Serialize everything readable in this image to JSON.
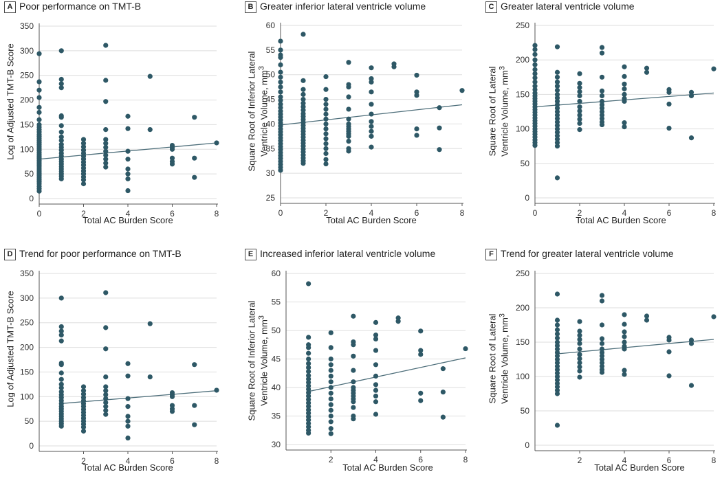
{
  "chart_data": [
    {
      "letter": "A",
      "title": "Poor performance on TMT-B",
      "type": "scatter",
      "xlabel": "Total AC Burden Score",
      "ylabel": "Log of Adjusted TMT-B Score",
      "ylabel_line1": "Log of Adjusted TMT-B Score",
      "ylabel_line2": "",
      "ylabel_sup": "",
      "xlim": [
        0,
        8
      ],
      "xticks": [
        "0",
        "2",
        "4",
        "6",
        "8"
      ],
      "ylim": [
        0,
        350
      ],
      "yticks": [
        "0",
        "50",
        "100",
        "150",
        "200",
        "250",
        "300",
        "350"
      ],
      "regression": {
        "x": [
          0,
          8
        ],
        "y": [
          80,
          113
        ]
      },
      "points": {
        "0": [
          294,
          237,
          220,
          205,
          185,
          175,
          160,
          150,
          145,
          140,
          135,
          130,
          126,
          122,
          118,
          114,
          110,
          106,
          102,
          98,
          94,
          90,
          86,
          82,
          78,
          74,
          70,
          66,
          62,
          58,
          54,
          50,
          46,
          42,
          38,
          34,
          30,
          25,
          20,
          15
        ],
        "1": [
          300,
          242,
          233,
          225,
          168,
          165,
          148,
          135,
          125,
          118,
          110,
          104,
          98,
          92,
          86,
          80,
          75,
          70,
          65,
          60,
          55,
          50,
          45,
          40
        ],
        "2": [
          120,
          112,
          105,
          98,
          92,
          86,
          80,
          74,
          68,
          62,
          56,
          50,
          44,
          38,
          30
        ],
        "3": [
          311,
          240,
          197,
          140,
          120,
          112,
          104,
          96,
          88,
          80,
          72,
          64
        ],
        "4": [
          167,
          142,
          96,
          80,
          60,
          50,
          40,
          16
        ],
        "5": [
          248,
          140
        ],
        "6": [
          108,
          104,
          100,
          82,
          75,
          70
        ],
        "7": [
          165,
          82,
          43
        ],
        "8": [
          113
        ]
      }
    },
    {
      "letter": "B",
      "title": "Greater inferior lateral ventricle volume",
      "type": "scatter",
      "xlabel": "Total AC Burden Score",
      "ylabel": "Square Root of Inferior Lateral Ventricle Volume, mm3",
      "ylabel_line1": "Square Root of Inferior Lateral",
      "ylabel_line2": "Ventricle Volume, mm",
      "ylabel_sup": "3",
      "xlim": [
        0,
        8
      ],
      "xticks": [
        "0",
        "2",
        "4",
        "6",
        "8"
      ],
      "ylim": [
        25,
        60
      ],
      "yticks": [
        "25",
        "30",
        "35",
        "40",
        "45",
        "50",
        "55",
        "60"
      ],
      "regression": {
        "x": [
          0,
          8
        ],
        "y": [
          39.8,
          43.9
        ]
      },
      "points": {
        "0": [
          56.8,
          55.0,
          54.0,
          53.5,
          52.0,
          50.5,
          49.5,
          48.5,
          47.5,
          46.5,
          45.5,
          44.8,
          44.0,
          43.3,
          42.6,
          42.0,
          41.4,
          40.8,
          40.2,
          39.6,
          39.0,
          38.4,
          37.8,
          37.2,
          36.6,
          36.0,
          35.4,
          34.8,
          34.2,
          33.6,
          33.0,
          32.4,
          31.8,
          31.2,
          30.6
        ],
        "1": [
          58.2,
          48.8,
          47.0,
          46.0,
          45.0,
          44.2,
          43.5,
          42.8,
          42.1,
          41.5,
          40.9,
          40.3,
          39.7,
          39.1,
          38.5,
          37.9,
          37.3,
          36.7,
          36.1,
          35.5,
          34.9,
          34.3,
          33.7,
          33.1,
          32.5,
          32.0
        ],
        "2": [
          49.6,
          47.0,
          45.0,
          44.0,
          43.0,
          42.0,
          41.0,
          40.0,
          39.0,
          38.0,
          37.0,
          36.0,
          35.0,
          34.0,
          32.8,
          31.9
        ],
        "3": [
          52.5,
          48.0,
          47.5,
          45.5,
          43.0,
          41.0,
          40.0,
          39.5,
          39.0,
          38.5,
          38.0,
          37.5,
          36.5,
          35.0,
          34.5
        ],
        "4": [
          51.4,
          49.2,
          48.5,
          46.5,
          44.0,
          42.0,
          40.5,
          39.5,
          38.5,
          37.5,
          35.3
        ],
        "5": [
          52.2,
          51.6
        ],
        "6": [
          49.9,
          46.5,
          45.8,
          39.0,
          37.7
        ],
        "7": [
          43.3,
          39.2,
          34.8
        ],
        "8": [
          46.8
        ]
      }
    },
    {
      "letter": "C",
      "title": "Greater lateral ventricle volume",
      "type": "scatter",
      "xlabel": "Total AC Burden Score",
      "ylabel": "Square Root of Lateral Ventricle Volume, mm3",
      "ylabel_line1": "Square Root of Lateral",
      "ylabel_line2": "Ventricle Volume, mm",
      "ylabel_sup": "3",
      "xlim": [
        0,
        8
      ],
      "xticks": [
        "0",
        "2",
        "4",
        "6",
        "8"
      ],
      "ylim": [
        0,
        250
      ],
      "yticks": [
        "0",
        "50",
        "100",
        "150",
        "200",
        "250"
      ],
      "regression": {
        "x": [
          0,
          8
        ],
        "y": [
          132,
          152
        ]
      },
      "points": {
        "0": [
          221,
          215,
          208,
          200,
          193,
          186,
          180,
          174,
          168,
          162,
          157,
          152,
          148,
          144,
          140,
          136,
          132,
          128,
          124,
          120,
          116,
          112,
          108,
          104,
          100,
          96,
          92,
          88,
          84,
          80,
          76
        ],
        "1": [
          219,
          182,
          175,
          168,
          162,
          156,
          150,
          145,
          140,
          135,
          130,
          125,
          120,
          115,
          110,
          105,
          100,
          95,
          90,
          85,
          80,
          75,
          29
        ],
        "2": [
          180,
          166,
          160,
          154,
          148,
          140,
          132,
          126,
          120,
          114,
          108,
          99
        ],
        "3": [
          218,
          210,
          175,
          155,
          148,
          140,
          135,
          130,
          125,
          120,
          115,
          110,
          106
        ],
        "4": [
          190,
          176,
          165,
          158,
          150,
          144,
          140,
          109,
          103
        ],
        "5": [
          188,
          182
        ],
        "6": [
          157,
          153,
          136,
          101
        ],
        "7": [
          153,
          148,
          87
        ],
        "8": [
          187
        ]
      }
    },
    {
      "letter": "D",
      "title": "Trend for poor performance on TMT-B",
      "type": "scatter",
      "xlabel": "Total AC Burden Score",
      "ylabel": "Log of Adjusted TMT-B Score",
      "ylabel_line1": "Log of Adjusted TMT-B Score",
      "ylabel_line2": "",
      "ylabel_sup": "",
      "xlim": [
        0,
        8
      ],
      "xticks": [
        "2",
        "4",
        "6",
        "8"
      ],
      "ylim": [
        0,
        350
      ],
      "yticks": [
        "0",
        "50",
        "100",
        "150",
        "200",
        "250",
        "300",
        "350"
      ],
      "regression": {
        "x": [
          1,
          8
        ],
        "y": [
          86,
          112
        ]
      },
      "points": {
        "1": [
          300,
          242,
          233,
          225,
          213,
          168,
          165,
          148,
          135,
          125,
          118,
          110,
          104,
          98,
          92,
          86,
          80,
          75,
          70,
          65,
          60,
          55,
          50,
          45,
          40
        ],
        "2": [
          120,
          112,
          105,
          98,
          92,
          86,
          80,
          74,
          68,
          62,
          56,
          50,
          44,
          38,
          30
        ],
        "3": [
          311,
          240,
          197,
          140,
          120,
          112,
          104,
          96,
          88,
          80,
          72,
          64
        ],
        "4": [
          167,
          142,
          96,
          80,
          60,
          50,
          40,
          16
        ],
        "5": [
          248,
          140
        ],
        "6": [
          108,
          104,
          100,
          82,
          75,
          70
        ],
        "7": [
          165,
          82,
          43
        ],
        "8": [
          113
        ]
      }
    },
    {
      "letter": "E",
      "title": "Increased inferior lateral ventricle volume",
      "type": "scatter",
      "xlabel": "Total AC Burden Score",
      "ylabel": "Square Root of Inferior Lateral Ventricle Volume, mm3",
      "ylabel_line1": "Square Root of Inferior Lateral",
      "ylabel_line2": "Ventricle Volume, mm",
      "ylabel_sup": "3",
      "xlim": [
        0,
        8
      ],
      "xticks": [
        "2",
        "4",
        "6",
        "8"
      ],
      "ylim": [
        30,
        60
      ],
      "yticks": [
        "30",
        "35",
        "40",
        "45",
        "50",
        "55",
        "60"
      ],
      "regression": {
        "x": [
          1,
          8
        ],
        "y": [
          39.3,
          45.2
        ]
      },
      "points": {
        "1": [
          58.2,
          48.8,
          47.5,
          47.0,
          46.0,
          45.0,
          44.2,
          43.5,
          42.8,
          42.1,
          41.5,
          40.9,
          40.3,
          39.7,
          39.1,
          38.5,
          37.9,
          37.3,
          36.7,
          36.1,
          35.5,
          34.9,
          34.3,
          33.7,
          33.1,
          32.5,
          32.0
        ],
        "2": [
          49.6,
          47.0,
          45.0,
          44.0,
          43.0,
          42.0,
          41.0,
          40.0,
          39.0,
          38.0,
          37.0,
          36.0,
          35.0,
          34.0,
          32.8,
          31.9
        ],
        "3": [
          52.5,
          48.0,
          47.5,
          45.5,
          43.0,
          41.0,
          40.0,
          39.5,
          39.0,
          38.5,
          38.0,
          37.5,
          36.5,
          35.0,
          34.5
        ],
        "4": [
          51.4,
          49.2,
          48.5,
          46.5,
          44.0,
          42.0,
          40.5,
          39.5,
          38.5,
          37.5,
          35.3
        ],
        "5": [
          52.2,
          51.6
        ],
        "6": [
          49.9,
          46.5,
          45.8,
          39.0,
          37.7
        ],
        "7": [
          43.3,
          39.2,
          34.8
        ],
        "8": [
          46.8
        ]
      }
    },
    {
      "letter": "F",
      "title": "Trend for greater lateral ventricle volume",
      "type": "scatter",
      "xlabel": "Total AC Burden Score",
      "ylabel": "Square Root of Lateral Ventricle Volume, mm3",
      "ylabel_line1": "Square Root of Lateral",
      "ylabel_line2": "Ventricle Volume, mm",
      "ylabel_sup": "3",
      "xlim": [
        0,
        8
      ],
      "xticks": [
        "2",
        "4",
        "6",
        "8"
      ],
      "ylim": [
        0,
        250
      ],
      "yticks": [
        "0",
        "50",
        "100",
        "150",
        "200",
        "250"
      ],
      "regression": {
        "x": [
          1,
          8
        ],
        "y": [
          133,
          154
        ]
      },
      "points": {
        "1": [
          220,
          182,
          175,
          168,
          162,
          156,
          150,
          145,
          140,
          135,
          130,
          125,
          120,
          115,
          110,
          105,
          100,
          95,
          90,
          85,
          80,
          75,
          29
        ],
        "2": [
          180,
          166,
          160,
          154,
          148,
          140,
          132,
          126,
          120,
          114,
          108,
          99
        ],
        "3": [
          218,
          210,
          175,
          155,
          148,
          140,
          135,
          130,
          125,
          120,
          115,
          110,
          106
        ],
        "4": [
          190,
          176,
          165,
          158,
          150,
          144,
          140,
          109,
          103
        ],
        "5": [
          188,
          182
        ],
        "6": [
          157,
          153,
          136,
          101
        ],
        "7": [
          153,
          148,
          87
        ],
        "8": [
          187
        ]
      }
    }
  ],
  "colors": {
    "point": "#2e5866",
    "line": "#4c6d79",
    "axis": "#555555",
    "grid": "#dedede"
  }
}
